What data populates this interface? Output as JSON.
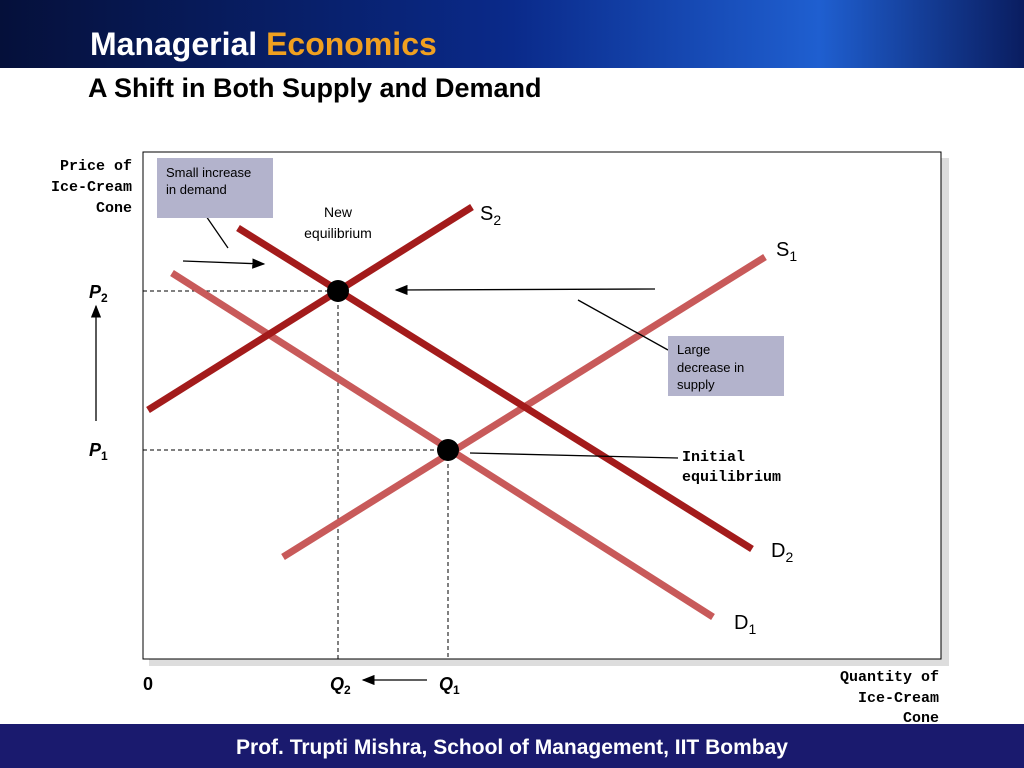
{
  "header": {
    "brand_1": "Managerial",
    "brand_2": "Economics"
  },
  "title": "A Shift in Both Supply and Demand",
  "diagram": {
    "y_axis_label": [
      "Price of",
      "Ice-Cream",
      "Cone"
    ],
    "x_axis_label": [
      "Quantity of",
      "Ice-Cream",
      "Cone"
    ],
    "origin": "0",
    "prices": [
      {
        "main": "P",
        "sub": "2"
      },
      {
        "main": "P",
        "sub": "1"
      }
    ],
    "quantities": [
      {
        "main": "Q",
        "sub": "2"
      },
      {
        "main": "Q",
        "sub": "1"
      }
    ],
    "curves": [
      {
        "main": "S",
        "sub": "2"
      },
      {
        "main": "S",
        "sub": "1"
      },
      {
        "main": "D",
        "sub": "2"
      },
      {
        "main": "D",
        "sub": "1"
      }
    ],
    "annotations": {
      "small_increase": [
        "Small increase",
        "in demand"
      ],
      "large_decrease": [
        "Large",
        "decrease in",
        "supply"
      ],
      "new_equilibrium": [
        "New",
        "equilibrium"
      ],
      "initial_equilibrium": [
        "Initial",
        "equilibrium"
      ]
    }
  },
  "footer": "Prof. Trupti Mishra, School of Management, IIT Bombay"
}
